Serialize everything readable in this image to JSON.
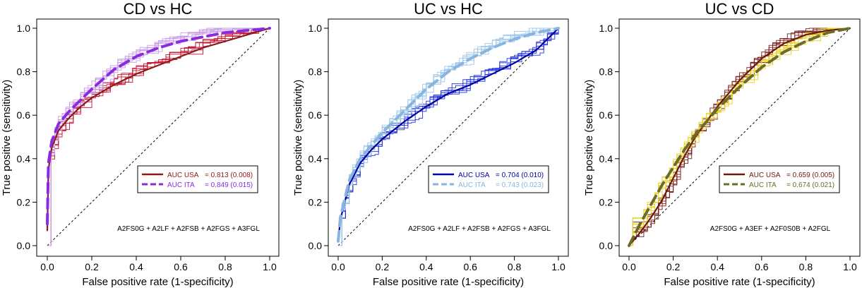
{
  "chart_data": [
    {
      "type": "line",
      "title": "CD vs HC",
      "xlabel": "False positive rate (1-specificity)",
      "ylabel": "True positive (sensitivity)",
      "xlim": [
        0,
        1
      ],
      "ylim": [
        0,
        1
      ],
      "xticks": [
        "0.0",
        "0.2",
        "0.4",
        "0.6",
        "0.8",
        "1.0"
      ],
      "yticks": [
        "0.0",
        "0.2",
        "0.4",
        "0.6",
        "0.8",
        "1.0"
      ],
      "formula": "A2FS0G + A2LF + A2FSB + A2FGS + A3FGL",
      "legend_position": "bottom-right",
      "series": [
        {
          "name": "AUC USA",
          "auc_text": "= 0.813 (0.008)",
          "color": "#8b1a1a",
          "dash": false,
          "x": [
            0,
            0.005,
            0.02,
            0.05,
            0.1,
            0.15,
            0.2,
            0.3,
            0.4,
            0.5,
            0.6,
            0.7,
            0.8,
            0.9,
            1.0
          ],
          "y": [
            0.07,
            0.35,
            0.45,
            0.53,
            0.59,
            0.64,
            0.68,
            0.74,
            0.79,
            0.83,
            0.87,
            0.91,
            0.94,
            0.97,
            1.0
          ]
        },
        {
          "name": "AUC ITA",
          "auc_text": "= 0.849 (0.015)",
          "color": "#8a2be2",
          "dash": true,
          "x": [
            0,
            0.005,
            0.02,
            0.05,
            0.1,
            0.15,
            0.2,
            0.3,
            0.4,
            0.5,
            0.6,
            0.7,
            0.8,
            0.9,
            1.0
          ],
          "y": [
            0.1,
            0.38,
            0.48,
            0.56,
            0.62,
            0.67,
            0.72,
            0.81,
            0.87,
            0.91,
            0.94,
            0.96,
            0.98,
            0.99,
            1.0
          ]
        }
      ],
      "bundles": [
        {
          "base": 0,
          "color": "#c8102e",
          "n": 6
        },
        {
          "base": 1,
          "color": "#c79be6",
          "n": 7
        }
      ]
    },
    {
      "type": "line",
      "title": "UC vs HC",
      "xlabel": "False positive rate (1-specificity)",
      "ylabel": "True positive (sensitivity)",
      "xlim": [
        0,
        1
      ],
      "ylim": [
        0,
        1
      ],
      "xticks": [
        "0.0",
        "0.2",
        "0.4",
        "0.6",
        "0.8",
        "1.0"
      ],
      "yticks": [
        "0.0",
        "0.2",
        "0.4",
        "0.6",
        "0.8",
        "1.0"
      ],
      "formula": "A2FS0G + A2LF + A2FSB + A2FGS + A3FGL",
      "legend_position": "bottom-right",
      "series": [
        {
          "name": "AUC USA",
          "auc_text": "= 0.704 (0.010)",
          "color": "#0000a0",
          "dash": false,
          "x": [
            0,
            0.01,
            0.05,
            0.1,
            0.15,
            0.2,
            0.25,
            0.3,
            0.4,
            0.5,
            0.6,
            0.7,
            0.8,
            0.9,
            1.0
          ],
          "y": [
            0.02,
            0.12,
            0.28,
            0.38,
            0.44,
            0.49,
            0.53,
            0.57,
            0.64,
            0.7,
            0.74,
            0.79,
            0.84,
            0.9,
            1.0
          ]
        },
        {
          "name": "AUC ITA",
          "auc_text": "= 0.743 (0.023)",
          "color": "#87b5de",
          "dash": true,
          "x": [
            0,
            0.01,
            0.05,
            0.1,
            0.15,
            0.2,
            0.25,
            0.3,
            0.4,
            0.5,
            0.6,
            0.7,
            0.8,
            0.9,
            1.0
          ],
          "y": [
            0.02,
            0.13,
            0.3,
            0.4,
            0.46,
            0.52,
            0.57,
            0.62,
            0.72,
            0.8,
            0.86,
            0.91,
            0.95,
            0.98,
            1.0
          ]
        }
      ],
      "bundles": [
        {
          "base": 0,
          "color": "#2233dd",
          "n": 6
        },
        {
          "base": 1,
          "color": "#9cc8ea",
          "n": 7
        }
      ]
    },
    {
      "type": "line",
      "title": "UC vs CD",
      "xlabel": "False positive rate (1-specificity)",
      "ylabel": "True positive (sensitivity)",
      "xlim": [
        0,
        1
      ],
      "ylim": [
        0,
        1
      ],
      "xticks": [
        "0.0",
        "0.2",
        "0.4",
        "0.6",
        "0.8",
        "1.0"
      ],
      "yticks": [
        "0.0",
        "0.2",
        "0.4",
        "0.6",
        "0.8",
        "1.0"
      ],
      "formula": "A2FS0G + A3EF + A2F0S0B + A2FGL",
      "legend_position": "bottom-right",
      "series": [
        {
          "name": "AUC USA",
          "auc_text": "= 0.659 (0.005)",
          "color": "#6b1a0a",
          "dash": false,
          "x": [
            0,
            0.05,
            0.1,
            0.15,
            0.2,
            0.25,
            0.3,
            0.4,
            0.5,
            0.6,
            0.7,
            0.8,
            0.9,
            1.0
          ],
          "y": [
            0.0,
            0.06,
            0.13,
            0.21,
            0.31,
            0.41,
            0.5,
            0.64,
            0.76,
            0.86,
            0.93,
            0.97,
            0.99,
            1.0
          ]
        },
        {
          "name": "AUC ITA",
          "auc_text": "= 0.674 (0.021)",
          "color": "#6e6a2a",
          "dash": true,
          "x": [
            0,
            0.05,
            0.1,
            0.15,
            0.2,
            0.25,
            0.3,
            0.4,
            0.5,
            0.6,
            0.7,
            0.8,
            0.9,
            1.0
          ],
          "y": [
            0.0,
            0.1,
            0.19,
            0.28,
            0.36,
            0.44,
            0.51,
            0.63,
            0.73,
            0.82,
            0.89,
            0.94,
            0.98,
            1.0
          ]
        }
      ],
      "bundles": [
        {
          "base": 0,
          "color": "#7a1e1e",
          "n": 6
        },
        {
          "base": 1,
          "color": "#e8d21a",
          "n": 7
        }
      ]
    }
  ]
}
